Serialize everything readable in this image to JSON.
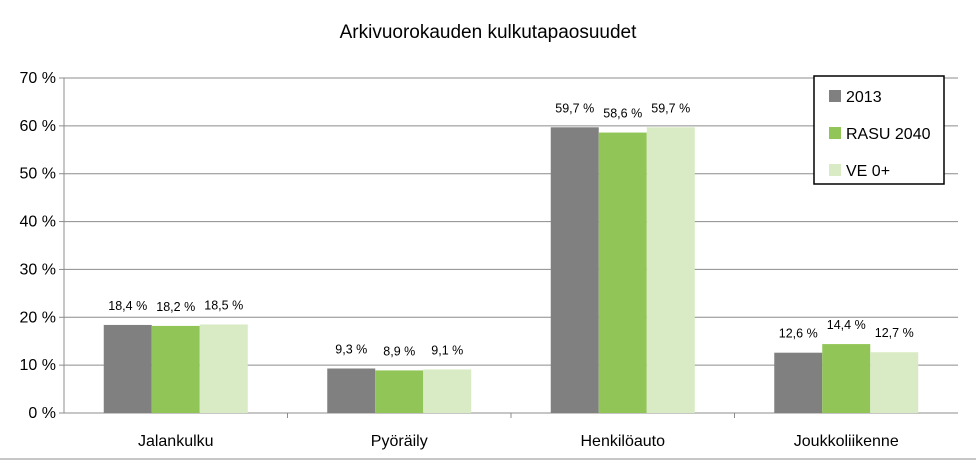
{
  "chart_data": {
    "type": "bar",
    "title": "Arkivuorokauden kulkutapaosuudet",
    "xlabel": "",
    "ylabel": "",
    "ylim": [
      0,
      70
    ],
    "yticks": [
      "0 %",
      "10 %",
      "20 %",
      "30 %",
      "40 %",
      "50 %",
      "60 %",
      "70 %"
    ],
    "ytick_values": [
      0,
      10,
      20,
      30,
      40,
      50,
      60,
      70
    ],
    "grid": true,
    "legend_position": "top-right",
    "categories": [
      "Jalankulku",
      "Pyöräily",
      "Henkilöauto",
      "Joukkoliikenne"
    ],
    "series": [
      {
        "name": "2013",
        "color": "#808080",
        "values": [
          18.4,
          9.3,
          59.7,
          12.6
        ],
        "labels": [
          "18,4 %",
          "9,3 %",
          "59,7 %",
          "12,6 %"
        ]
      },
      {
        "name": "RASU 2040",
        "color": "#92c557",
        "values": [
          18.2,
          8.9,
          58.6,
          14.4
        ],
        "labels": [
          "18,2 %",
          "8,9 %",
          "58,6 %",
          "14,4 %"
        ]
      },
      {
        "name": "VE 0+",
        "color": "#d9ebc4",
        "values": [
          18.5,
          9.1,
          59.7,
          12.7
        ],
        "labels": [
          "18,5 %",
          "9,1 %",
          "59,7 %",
          "12,7 %"
        ]
      }
    ]
  }
}
